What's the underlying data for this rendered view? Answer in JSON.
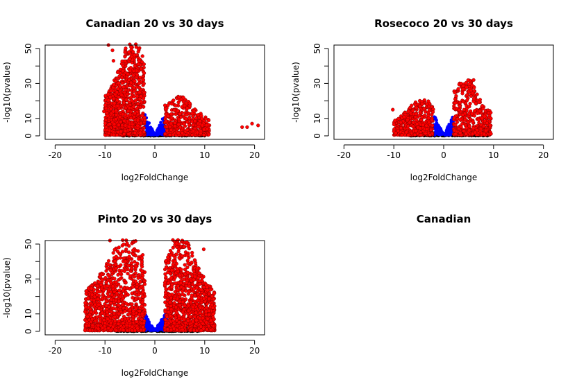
{
  "figure": {
    "layout": "2x2 grid"
  },
  "chart_data": [
    {
      "type": "scatter",
      "title": "Canadian 20 vs 30 days",
      "xlabel": "log2FoldChange",
      "ylabel": "-log10(pvalue)",
      "xlim": [
        -22,
        22
      ],
      "ylim": [
        -2,
        52
      ],
      "xticks": [
        -20,
        -10,
        0,
        10,
        20
      ],
      "yticks": [
        0,
        10,
        30,
        50
      ],
      "grid": false,
      "legend": "none",
      "colors": {
        "not_significant": "#000000",
        "significant_small_fc": "#0000ff",
        "significant_large_fc": "#ff0000"
      },
      "profile": {
        "red_left_xrange": [
          -10,
          -2
        ],
        "red_left_ymax": 52,
        "red_right_xrange": [
          2,
          11
        ],
        "red_right_ymax": 22,
        "blue_xrange": [
          2,
          -2
        ],
        "black_xrange": [
          -7,
          10
        ],
        "outliers": [
          {
            "x": 17.5,
            "y": 5
          },
          {
            "x": 18.5,
            "y": 5
          },
          {
            "x": 19.5,
            "y": 7
          },
          {
            "x": 20.7,
            "y": 6
          },
          {
            "x": -9.3,
            "y": 52
          },
          {
            "x": -8.5,
            "y": 49
          },
          {
            "x": -5.2,
            "y": 48
          },
          {
            "x": -8.3,
            "y": 43
          },
          {
            "x": -10.2,
            "y": 14
          },
          {
            "x": 10.5,
            "y": 4
          }
        ]
      }
    },
    {
      "type": "scatter",
      "title": "Rosecoco 20 vs 30 days",
      "xlabel": "log2FoldChange",
      "ylabel": "-log10(pvalue)",
      "xlim": [
        -22,
        22
      ],
      "ylim": [
        -2,
        52
      ],
      "xticks": [
        -20,
        -10,
        0,
        10,
        20
      ],
      "yticks": [
        0,
        10,
        30,
        50
      ],
      "grid": false,
      "legend": "none",
      "colors": {
        "not_significant": "#000000",
        "significant_small_fc": "#0000ff",
        "significant_large_fc": "#ff0000"
      },
      "profile": {
        "red_left_xrange": [
          -10,
          -2
        ],
        "red_left_ymax": 20,
        "red_right_xrange": [
          2,
          9.5
        ],
        "red_right_ymax": 32,
        "blue_xrange": [
          2,
          -2
        ],
        "black_xrange": [
          -7,
          9
        ],
        "outliers": [
          {
            "x": 6,
            "y": 32
          },
          {
            "x": 5.5,
            "y": 26
          },
          {
            "x": -10.2,
            "y": 15
          },
          {
            "x": 9.3,
            "y": 6
          }
        ]
      }
    },
    {
      "type": "scatter",
      "title": "Pinto 20 vs 30 days",
      "xlabel": "log2FoldChange",
      "ylabel": "-log10(pvalue)",
      "xlim": [
        -22,
        22
      ],
      "ylim": [
        -2,
        52
      ],
      "xticks": [
        -20,
        -10,
        0,
        10,
        20
      ],
      "yticks": [
        0,
        10,
        30,
        50
      ],
      "grid": false,
      "legend": "none",
      "colors": {
        "not_significant": "#000000",
        "significant_small_fc": "#0000ff",
        "significant_large_fc": "#ff0000"
      },
      "profile": {
        "red_left_xrange": [
          -14,
          -2
        ],
        "red_left_ymax": 52,
        "red_right_xrange": [
          2,
          12
        ],
        "red_right_ymax": 52,
        "blue_xrange": [
          2.5,
          -2.5
        ],
        "black_xrange": [
          -8,
          9
        ],
        "outliers": [
          {
            "x": -13.7,
            "y": 23
          },
          {
            "x": -11.5,
            "y": 26
          },
          {
            "x": 11.5,
            "y": 20
          },
          {
            "x": -9,
            "y": 52
          },
          {
            "x": 5.5,
            "y": 52
          },
          {
            "x": 9.8,
            "y": 47
          }
        ]
      }
    },
    {
      "type": "scatter",
      "title": "Canadian"
    }
  ]
}
